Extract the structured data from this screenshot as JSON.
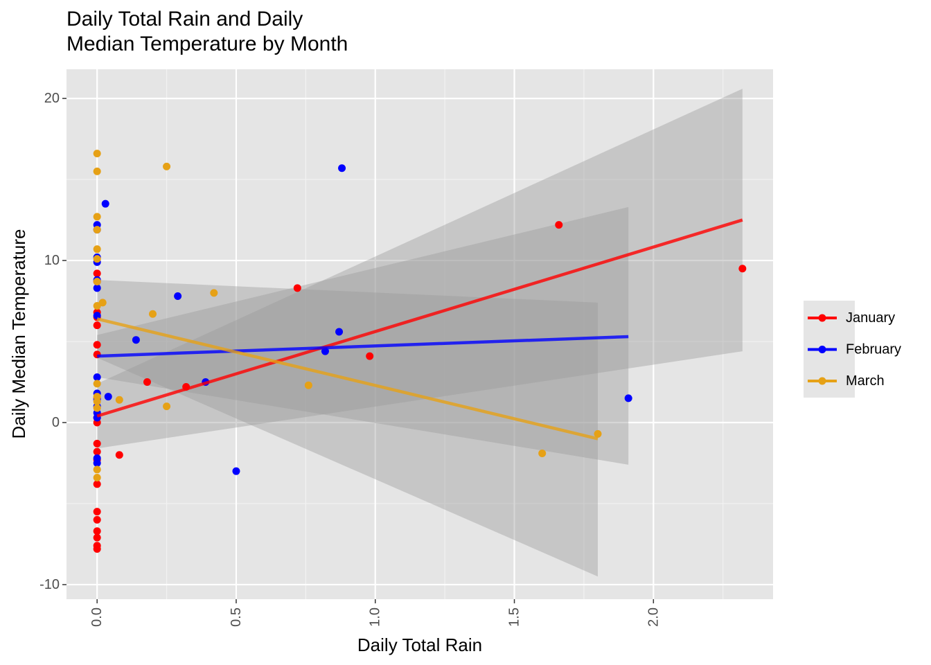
{
  "chart_data": {
    "type": "scatter",
    "title_lines": [
      "Daily Total Rain and Daily",
      "Median Temperature by Month"
    ],
    "xlabel": "Daily Total Rain",
    "ylabel": "Daily Median Temperature",
    "xlim": [
      -0.11,
      2.43
    ],
    "ylim": [
      -10.9,
      21.8
    ],
    "x_ticks": [
      0.0,
      0.5,
      1.0,
      1.5,
      2.0
    ],
    "x_tick_labels": [
      "0.0",
      "0.5",
      "1.0",
      "1.5",
      "2.0"
    ],
    "y_ticks": [
      -10,
      0,
      10,
      20
    ],
    "y_tick_labels": [
      "-10",
      "0",
      "10",
      "20"
    ],
    "grid": true,
    "legend_position": "right",
    "series": [
      {
        "name": "January",
        "color": "#ff0000",
        "points": [
          [
            0,
            9.2
          ],
          [
            0,
            8.7
          ],
          [
            0,
            6.8
          ],
          [
            0,
            6.5
          ],
          [
            0,
            6.0
          ],
          [
            0,
            4.8
          ],
          [
            0,
            4.2
          ],
          [
            0,
            1.5
          ],
          [
            0,
            0.3
          ],
          [
            0,
            0.0
          ],
          [
            0,
            -1.3
          ],
          [
            0,
            -1.8
          ],
          [
            0,
            -2.3
          ],
          [
            0,
            -3.8
          ],
          [
            0,
            -5.5
          ],
          [
            0,
            -6.0
          ],
          [
            0,
            -6.7
          ],
          [
            0,
            -7.1
          ],
          [
            0,
            -7.6
          ],
          [
            0,
            -7.8
          ],
          [
            0.08,
            -2.0
          ],
          [
            0.18,
            2.5
          ],
          [
            0.32,
            2.2
          ],
          [
            0.72,
            8.3
          ],
          [
            0.98,
            4.1
          ],
          [
            1.66,
            12.2
          ],
          [
            2.32,
            9.5
          ]
        ],
        "fit": {
          "x": [
            0,
            2.32
          ],
          "y": [
            0.4,
            12.5
          ]
        },
        "ci": {
          "x": [
            0,
            2.32
          ],
          "lower": [
            -1.6,
            4.4
          ],
          "upper": [
            2.4,
            20.6
          ]
        }
      },
      {
        "name": "February",
        "color": "#0000ff",
        "points": [
          [
            0,
            12.2
          ],
          [
            0,
            11.9
          ],
          [
            0,
            10.2
          ],
          [
            0,
            9.9
          ],
          [
            0,
            8.8
          ],
          [
            0,
            8.3
          ],
          [
            0,
            6.6
          ],
          [
            0,
            2.8
          ],
          [
            0,
            1.8
          ],
          [
            0,
            1.4
          ],
          [
            0,
            1.0
          ],
          [
            0,
            0.6
          ],
          [
            0,
            0.3
          ],
          [
            0,
            -2.2
          ],
          [
            0,
            -2.5
          ],
          [
            0.03,
            13.5
          ],
          [
            0.04,
            1.6
          ],
          [
            0.14,
            5.1
          ],
          [
            0.29,
            7.8
          ],
          [
            0.39,
            2.5
          ],
          [
            0.5,
            -3.0
          ],
          [
            0.82,
            4.4
          ],
          [
            0.87,
            5.6
          ],
          [
            0.88,
            15.7
          ],
          [
            1.91,
            1.5
          ]
        ],
        "fit": {
          "x": [
            0,
            1.91
          ],
          "y": [
            4.1,
            5.3
          ]
        },
        "ci": {
          "x": [
            0,
            1.91
          ],
          "lower": [
            2.8,
            -2.6
          ],
          "upper": [
            5.4,
            13.3
          ]
        }
      },
      {
        "name": "March",
        "color": "#e6a116",
        "points": [
          [
            0,
            16.6
          ],
          [
            0,
            15.5
          ],
          [
            0,
            12.7
          ],
          [
            0,
            11.9
          ],
          [
            0,
            10.7
          ],
          [
            0,
            10.1
          ],
          [
            0,
            8.7
          ],
          [
            0,
            7.2
          ],
          [
            0,
            2.4
          ],
          [
            0,
            1.6
          ],
          [
            0,
            1.3
          ],
          [
            0,
            0.9
          ],
          [
            0,
            -2.9
          ],
          [
            0,
            -3.4
          ],
          [
            0.02,
            7.4
          ],
          [
            0.08,
            1.4
          ],
          [
            0.2,
            6.7
          ],
          [
            0.25,
            15.8
          ],
          [
            0.25,
            1.0
          ],
          [
            0.42,
            8.0
          ],
          [
            0.76,
            2.3
          ],
          [
            1.6,
            -1.9
          ],
          [
            1.8,
            -0.7
          ]
        ],
        "fit": {
          "x": [
            0,
            1.8
          ],
          "y": [
            6.4,
            -1.0
          ]
        },
        "ci": {
          "x": [
            0,
            1.8
          ],
          "lower": [
            4.0,
            -9.5
          ],
          "upper": [
            8.8,
            7.4
          ]
        }
      }
    ]
  }
}
